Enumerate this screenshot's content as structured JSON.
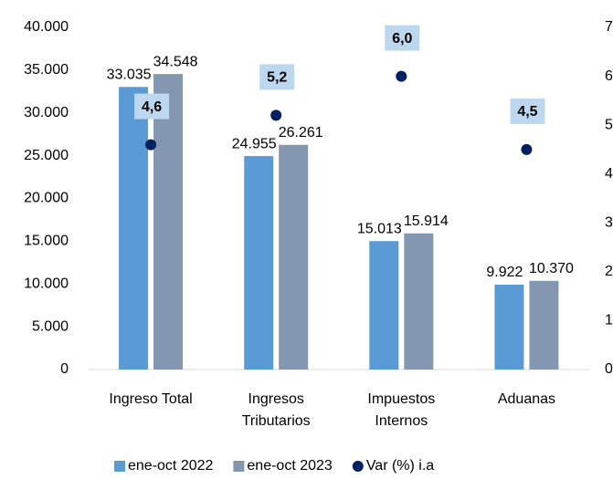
{
  "chart_data": {
    "type": "bar",
    "categories": [
      "Ingreso Total",
      "Ingresos Tributarios",
      "Impuestos Internos",
      "Aduanas"
    ],
    "series": [
      {
        "name": "ene-oct 2022",
        "color": "#5b9bd5",
        "type": "bar",
        "values": [
          33035,
          24955,
          15013,
          9922
        ],
        "value_labels": [
          "33.035",
          "24.955",
          "15.013",
          "9.922"
        ]
      },
      {
        "name": "ene-oct 2023",
        "color": "#8497b0",
        "type": "bar",
        "values": [
          34548,
          26261,
          15914,
          10370
        ],
        "value_labels": [
          "34.548",
          "26.261",
          "15.914",
          "10.370"
        ]
      },
      {
        "name": "Var (%) i.a",
        "color": "#002060",
        "type": "scatter",
        "axis": "y2",
        "values": [
          4.6,
          5.2,
          6.0,
          4.5
        ],
        "value_labels": [
          "4,6",
          "5,2",
          "6,0",
          "4,5"
        ]
      }
    ],
    "ylim": [
      0,
      40000
    ],
    "yticks": [
      0,
      {
        "value": 5000,
        "label": "5.000"
      },
      {
        "value": 10000,
        "label": "10.000"
      },
      {
        "value": 15000,
        "label": "15.000"
      },
      {
        "value": 20000,
        "label": "20.000"
      },
      {
        "value": 25000,
        "label": "25.000"
      },
      {
        "value": 30000,
        "label": "30.000"
      },
      {
        "value": 35000,
        "label": "35.000"
      },
      {
        "value": 40000,
        "label": "40.000"
      }
    ],
    "y2lim": [
      0,
      7
    ],
    "y2ticks": [
      0,
      1,
      2,
      3,
      4,
      5,
      6,
      7
    ],
    "grid": false,
    "legend": "bottom"
  }
}
